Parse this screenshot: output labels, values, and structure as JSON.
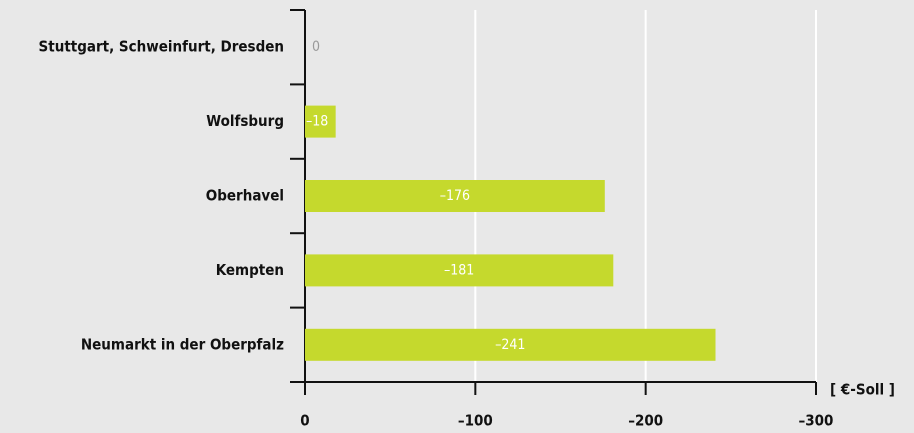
{
  "chart_data": {
    "type": "bar",
    "orientation": "horizontal",
    "categories": [
      "Stuttgart, Schweinfurt, Dresden",
      "Wolfsburg",
      "Oberhavel",
      "Kempten",
      "Neumarkt in der Oberpfalz"
    ],
    "values": [
      0,
      -18,
      -176,
      -181,
      -241
    ],
    "value_labels": [
      "0",
      "–18",
      "–176",
      "–181",
      "–241"
    ],
    "color": "#c5d92d",
    "xlabel": "[ €-Soll ]",
    "xlim": [
      0,
      -300
    ],
    "xticks": [
      0,
      {
        "value": -100,
        "label": "–100"
      },
      {
        "value": -200,
        "label": "–200"
      },
      {
        "value": -300,
        "label": "–300"
      }
    ],
    "grid": true
  }
}
